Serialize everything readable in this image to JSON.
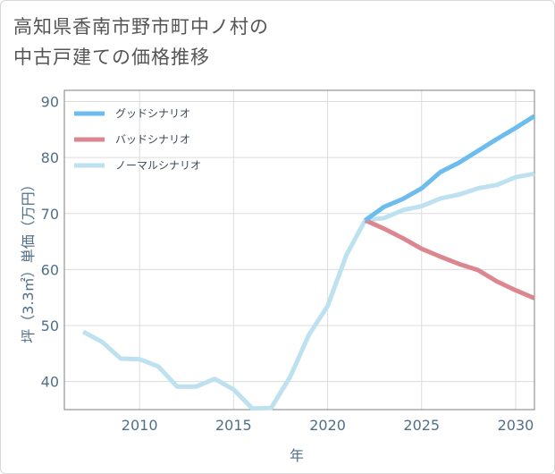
{
  "title_lines": [
    "高知県香南市野市町中ノ村の",
    "中古戸建ての価格推移"
  ],
  "chart_data": {
    "type": "line",
    "xlabel": "年",
    "ylabel": "坪（3.3㎡）単価（万円）",
    "xlim": [
      2006,
      2031
    ],
    "ylim": [
      35,
      92
    ],
    "xticks": [
      2010,
      2015,
      2020,
      2025,
      2030
    ],
    "yticks": [
      40,
      50,
      60,
      70,
      80,
      90
    ],
    "grid": true,
    "legend_position": "top-left",
    "series": [
      {
        "name": "グッドシナリオ",
        "color": "#6cbcef",
        "x": [
          2022,
          2023,
          2024,
          2025,
          2026,
          2027,
          2028,
          2029,
          2030,
          2031
        ],
        "values": [
          68.8,
          71.2,
          72.6,
          74.5,
          77.4,
          79.1,
          81.2,
          83.3,
          85.3,
          87.4
        ]
      },
      {
        "name": "バッドシナリオ",
        "color": "#dc8790",
        "x": [
          2022,
          2023,
          2024,
          2025,
          2026,
          2027,
          2028,
          2029,
          2030,
          2031
        ],
        "values": [
          68.8,
          67.3,
          65.6,
          63.7,
          62.3,
          61.0,
          59.9,
          57.9,
          56.3,
          54.9
        ]
      },
      {
        "name": "ノーマルシナリオ",
        "color": "#bde1ef",
        "x": [
          2007,
          2008,
          2009,
          2010,
          2011,
          2012,
          2013,
          2014,
          2015,
          2016,
          2017,
          2018,
          2019,
          2020,
          2021,
          2022,
          2023,
          2024,
          2025,
          2026,
          2027,
          2028,
          2029,
          2030,
          2031
        ],
        "values": [
          48.9,
          47.1,
          44.1,
          44.0,
          42.7,
          39.1,
          39.1,
          40.5,
          38.6,
          35.2,
          35.3,
          40.8,
          48.3,
          53.5,
          62.6,
          68.8,
          69.2,
          70.6,
          71.3,
          72.7,
          73.4,
          74.5,
          75.1,
          76.5,
          77.1
        ]
      }
    ]
  }
}
